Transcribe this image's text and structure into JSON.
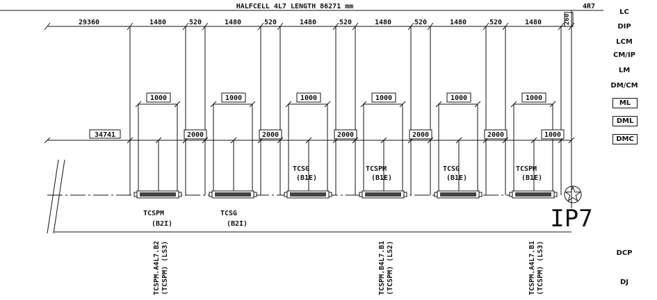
{
  "title": "HALFCELL 4L7 LENGTH 86271 mm",
  "corner_label": "4R7",
  "top_dims": [
    "29360",
    "1480",
    "520",
    "1480",
    "520",
    "1480",
    "520",
    "1480",
    "520",
    "1480",
    "520",
    "1480",
    "260"
  ],
  "mid_left_dim": "34741",
  "spacer_dims": [
    "2000",
    "2000",
    "2000",
    "2000",
    "2000",
    "1000"
  ],
  "module_dims": [
    "1000",
    "1000",
    "1000",
    "1000",
    "1000",
    "1000"
  ],
  "upper_names": [
    {
      "name": "TCSG",
      "sub": "(B1E)"
    },
    {
      "name": "TCSPM",
      "sub": "(B1E)"
    },
    {
      "name": "TCSG",
      "sub": "(B1E)"
    },
    {
      "name": "TCSPM",
      "sub": "(B1E)"
    }
  ],
  "lower_names": [
    {
      "name": "TCSPM",
      "sub": "(B2I)"
    },
    {
      "name": "TCSG",
      "sub": "(B2I)"
    }
  ],
  "ip_label": "IP7",
  "vertical_labels": [
    {
      "line1": "TCSPM.A4L7.B2",
      "line2": "(TCSPM) (LS3)"
    },
    {
      "line1": "TCSPM.B4L7.B1",
      "line2": "(TCSPM) (LS2)"
    },
    {
      "line1": "TCSPM.A4L7.B1",
      "line2": "(TCSPM) (LS3)"
    }
  ],
  "right_labels": [
    "LC",
    "DIP",
    "LCM",
    "CM/IP",
    "LM",
    "DM/CM",
    "ML",
    "DML",
    "DMC",
    "DCP",
    "DJ"
  ],
  "boxed_right_labels": [
    "ML",
    "DML",
    "DMC"
  ]
}
